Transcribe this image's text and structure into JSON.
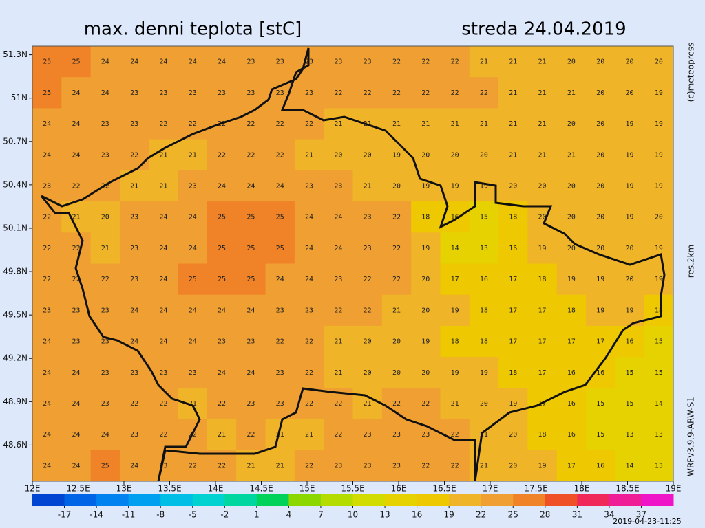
{
  "header": {
    "title": "max. denni teplota [stC]",
    "date": "streda 24.04.2019"
  },
  "side_labels": [
    "(c)meteopress",
    "res.2km",
    "WRFv3.9.9-ARW-S1"
  ],
  "issued": "2019-04-23-11:25",
  "map": {
    "latlim": [
      48.35,
      51.36
    ],
    "lonlim": [
      12,
      19
    ],
    "latticks": [
      {
        "value": 51.3,
        "label": "51.3N"
      },
      {
        "value": 51,
        "label": "51N"
      },
      {
        "value": 50.7,
        "label": "50.7N"
      },
      {
        "value": 50.4,
        "label": "50.4N"
      },
      {
        "value": 50.1,
        "label": "50.1N"
      },
      {
        "value": 49.8,
        "label": "49.8N"
      },
      {
        "value": 49.5,
        "label": "49.5N"
      },
      {
        "value": 49.2,
        "label": "49.2N"
      },
      {
        "value": 48.9,
        "label": "48.9N"
      },
      {
        "value": 48.6,
        "label": "48.6N"
      }
    ],
    "lonticks": [
      {
        "value": 12,
        "label": "12E"
      },
      {
        "value": 12.5,
        "label": "12.5E"
      },
      {
        "value": 13,
        "label": "13E"
      },
      {
        "value": 13.5,
        "label": "13.5E"
      },
      {
        "value": 14,
        "label": "14E"
      },
      {
        "value": 14.5,
        "label": "14.5E"
      },
      {
        "value": 15,
        "label": "15E"
      },
      {
        "value": 15.5,
        "label": "15.5E"
      },
      {
        "value": 16,
        "label": "16E"
      },
      {
        "value": 16.5,
        "label": "16.5E"
      },
      {
        "value": 17,
        "label": "17E"
      },
      {
        "value": 17.5,
        "label": "17.5E"
      },
      {
        "value": 18,
        "label": "18E"
      },
      {
        "value": 18.5,
        "label": "18.5E"
      },
      {
        "value": 19,
        "label": "19E"
      }
    ],
    "grid": [
      [
        25,
        25,
        24,
        24,
        24,
        24,
        24,
        23,
        23,
        23,
        23,
        23,
        22,
        22,
        22,
        21,
        21,
        21,
        20,
        20,
        20,
        20
      ],
      [
        25,
        24,
        24,
        23,
        23,
        23,
        23,
        23,
        23,
        23,
        22,
        22,
        22,
        22,
        22,
        22,
        21,
        21,
        21,
        20,
        20,
        19
      ],
      [
        24,
        24,
        23,
        23,
        22,
        22,
        22,
        22,
        22,
        22,
        21,
        21,
        21,
        21,
        21,
        21,
        21,
        21,
        20,
        20,
        19,
        19
      ],
      [
        24,
        24,
        23,
        22,
        21,
        21,
        22,
        22,
        22,
        21,
        20,
        20,
        19,
        20,
        20,
        20,
        21,
        21,
        21,
        20,
        19,
        19
      ],
      [
        23,
        22,
        22,
        21,
        21,
        23,
        24,
        24,
        24,
        23,
        23,
        21,
        20,
        19,
        19,
        19,
        20,
        20,
        20,
        20,
        19,
        19
      ],
      [
        22,
        21,
        20,
        23,
        24,
        24,
        25,
        25,
        25,
        24,
        24,
        23,
        22,
        18,
        16,
        15,
        18,
        20,
        20,
        20,
        19,
        20
      ],
      [
        22,
        22,
        21,
        23,
        24,
        24,
        25,
        25,
        25,
        24,
        24,
        23,
        22,
        19,
        14,
        13,
        16,
        19,
        20,
        20,
        20,
        19
      ],
      [
        22,
        22,
        22,
        23,
        24,
        25,
        25,
        25,
        24,
        24,
        23,
        22,
        22,
        20,
        17,
        16,
        17,
        18,
        19,
        19,
        20,
        19
      ],
      [
        23,
        23,
        23,
        24,
        24,
        24,
        24,
        24,
        23,
        23,
        22,
        22,
        21,
        20,
        19,
        18,
        17,
        17,
        18,
        19,
        19,
        18
      ],
      [
        24,
        23,
        23,
        24,
        24,
        24,
        23,
        23,
        22,
        22,
        21,
        20,
        20,
        19,
        18,
        18,
        17,
        17,
        17,
        17,
        16,
        15
      ],
      [
        24,
        24,
        23,
        23,
        23,
        23,
        24,
        24,
        23,
        22,
        21,
        20,
        20,
        20,
        19,
        19,
        18,
        17,
        16,
        16,
        15,
        15
      ],
      [
        24,
        24,
        23,
        22,
        22,
        21,
        22,
        23,
        23,
        22,
        22,
        21,
        22,
        22,
        21,
        20,
        19,
        17,
        16,
        15,
        15,
        14
      ],
      [
        24,
        24,
        24,
        23,
        22,
        22,
        21,
        22,
        21,
        21,
        22,
        23,
        23,
        23,
        22,
        21,
        20,
        18,
        16,
        15,
        13,
        13
      ],
      [
        24,
        24,
        25,
        24,
        23,
        22,
        22,
        21,
        21,
        22,
        23,
        23,
        23,
        22,
        22,
        21,
        20,
        19,
        17,
        16,
        14,
        13
      ]
    ]
  },
  "colorbar": {
    "range": [
      -20,
      40
    ],
    "ticks": [
      -17,
      -14,
      -11,
      -8,
      -5,
      -2,
      1,
      4,
      7,
      10,
      13,
      16,
      19,
      22,
      25,
      28,
      31,
      34,
      37
    ],
    "colors": [
      "#0046d2",
      "#0064e6",
      "#0082f0",
      "#00a0f0",
      "#00bee6",
      "#00d2d2",
      "#00d7a0",
      "#00d25a",
      "#8cd700",
      "#b4dc00",
      "#d2dc00",
      "#e6d200",
      "#eec800",
      "#f0b428",
      "#f0a032",
      "#f08228",
      "#f05028",
      "#f0285a",
      "#f01e96",
      "#f014c8"
    ]
  }
}
